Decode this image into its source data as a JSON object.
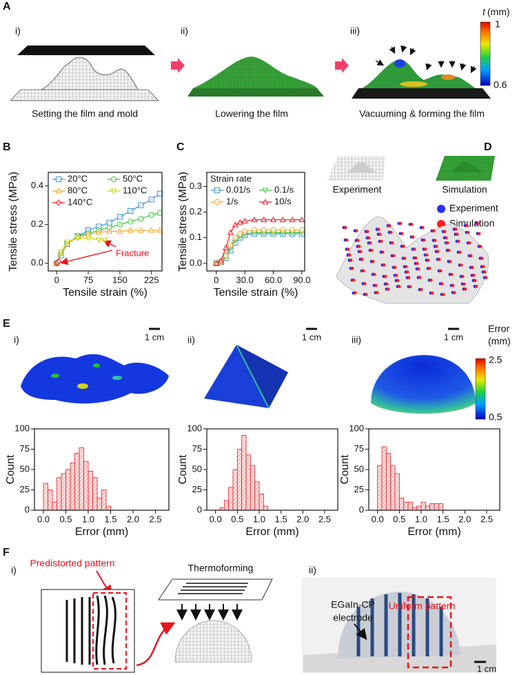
{
  "panel_labels": [
    "A",
    "B",
    "C",
    "D",
    "E",
    "F"
  ],
  "panel_a": {
    "sub_labels": [
      "i)",
      "ii)",
      "iii)"
    ],
    "captions": [
      "Setting the film and mold",
      "Lowering the film",
      "Vacuuming & forming the film"
    ],
    "colorbar": {
      "variable": "t",
      "unit": "(mm)",
      "max": 1,
      "min": 0.6
    }
  },
  "panel_d": {
    "image_labels": [
      "Experiment",
      "Simulation"
    ],
    "legend": [
      {
        "name": "Experiment",
        "color": "#2b2bff"
      },
      {
        "name": "Simulation",
        "color": "#ff1a1a"
      }
    ]
  },
  "panel_e": {
    "sub_labels": [
      "i)",
      "ii)",
      "iii)"
    ],
    "scale_bars": [
      "1 cm",
      "1 cm",
      "1 cm"
    ],
    "colorbar": {
      "title": "Error",
      "unit": "(mm)",
      "max": 2.5,
      "min": 0.5
    }
  },
  "panel_f": {
    "sub_labels": [
      "i)",
      "ii)"
    ],
    "predistorted": "Predistorted pattern",
    "thermoforming": "Thermoforming",
    "electrode": [
      "EGaIn-CP",
      "electrode"
    ],
    "uniform": "Uniform pattern",
    "scale_bar": "1 cm"
  },
  "chart_data": [
    {
      "type": "line",
      "x_label": "Tensile strain (%)",
      "y_label": "Tensile stress (MPa)",
      "xlim": [
        -20,
        250
      ],
      "ylim": [
        -0.04,
        0.47
      ],
      "xticks": [
        0,
        75,
        150,
        225
      ],
      "yticks": [
        {
          "value": 0,
          "label": "0.0"
        },
        0.2,
        0.4
      ],
      "annotation": "Fracture",
      "legend_columns": 2,
      "series": [
        {
          "name": "20°C",
          "color": "#3d8fd6",
          "marker": "square",
          "x": [
            0,
            10,
            25,
            50,
            75,
            100,
            125,
            150,
            175,
            200,
            225,
            245
          ],
          "values": [
            0,
            0.04,
            0.1,
            0.14,
            0.17,
            0.19,
            0.21,
            0.24,
            0.27,
            0.3,
            0.33,
            0.36
          ]
        },
        {
          "name": "50°C",
          "color": "#3cc43c",
          "marker": "circle",
          "x": [
            0,
            10,
            25,
            50,
            75,
            100,
            125,
            150,
            175,
            200,
            225,
            245
          ],
          "values": [
            0,
            0.05,
            0.1,
            0.14,
            0.155,
            0.17,
            0.185,
            0.2,
            0.215,
            0.23,
            0.25,
            0.26
          ]
        },
        {
          "name": "80°C",
          "color": "#f5a623",
          "marker": "triangle",
          "x": [
            0,
            10,
            25,
            50,
            75,
            100,
            125,
            150,
            175,
            200,
            225,
            245
          ],
          "values": [
            0,
            0.05,
            0.1,
            0.135,
            0.15,
            0.16,
            0.165,
            0.165,
            0.17,
            0.17,
            0.17,
            0.17
          ]
        },
        {
          "name": "110°C",
          "color": "#c8d400",
          "marker": "triangle-down",
          "x": [
            0,
            10,
            25,
            50,
            75,
            100,
            115
          ],
          "values": [
            0,
            0.06,
            0.11,
            0.13,
            0.13,
            0.12,
            0.12
          ]
        },
        {
          "name": "140°C",
          "color": "#e8141c",
          "marker": "diamond",
          "x": [
            0,
            2,
            5
          ],
          "values": [
            0,
            0.005,
            0.01
          ]
        }
      ]
    },
    {
      "type": "line",
      "x_label": "Tensile strain (%)",
      "y_label": "Tensile stress (MPa)",
      "xlim": [
        -10,
        93
      ],
      "ylim": [
        -0.03,
        0.355
      ],
      "xticks": [
        0,
        {
          "value": 30,
          "label": "30.0"
        },
        {
          "value": 60,
          "label": "60.0"
        },
        {
          "value": 90,
          "label": "90.0"
        }
      ],
      "yticks": [
        {
          "value": 0,
          "label": "0.0"
        },
        0.1,
        0.2,
        0.3
      ],
      "legend_title": "Strain rate",
      "legend_columns": 2,
      "series": [
        {
          "name": "0.01/s",
          "color": "#3d8fd6",
          "marker": "square",
          "x": [
            0,
            5,
            10,
            15,
            20,
            25,
            30,
            40,
            50,
            60,
            70,
            80,
            90
          ],
          "values": [
            0,
            0.004,
            0.02,
            0.05,
            0.08,
            0.1,
            0.11,
            0.115,
            0.115,
            0.115,
            0.115,
            0.115,
            0.115
          ]
        },
        {
          "name": "0.1/s",
          "color": "#3cc43c",
          "marker": "triangle-down",
          "x": [
            0,
            5,
            10,
            15,
            20,
            25,
            30,
            40,
            50,
            60,
            70,
            80,
            90
          ],
          "values": [
            0,
            0.004,
            0.025,
            0.06,
            0.09,
            0.105,
            0.115,
            0.12,
            0.12,
            0.12,
            0.12,
            0.12,
            0.12
          ]
        },
        {
          "name": "1/s",
          "color": "#f5a623",
          "marker": "circle",
          "x": [
            0,
            5,
            10,
            15,
            20,
            25,
            30,
            40,
            50,
            60,
            70,
            80,
            90
          ],
          "values": [
            0,
            0.005,
            0.03,
            0.07,
            0.1,
            0.115,
            0.125,
            0.13,
            0.13,
            0.13,
            0.13,
            0.13,
            0.13
          ]
        },
        {
          "name": "10/s",
          "color": "#e8141c",
          "marker": "triangle",
          "x": [
            0,
            5,
            10,
            15,
            20,
            25,
            30,
            40,
            50,
            60,
            70,
            80,
            90
          ],
          "values": [
            0,
            0.01,
            0.06,
            0.12,
            0.15,
            0.16,
            0.165,
            0.17,
            0.17,
            0.17,
            0.17,
            0.17,
            0.17
          ]
        }
      ]
    },
    {
      "type": "histogram",
      "x_label": "Error (mm)",
      "y_label": "Count",
      "color": "#e8141c",
      "xlim": [
        -0.2,
        2.8
      ],
      "ylim": [
        0,
        100
      ],
      "xticks": [
        {
          "value": 0,
          "label": "0.0"
        },
        0.5,
        {
          "value": 1,
          "label": "1.0"
        },
        1.5,
        {
          "value": 2,
          "label": "2.0"
        },
        2.5
      ],
      "yticks": [
        0,
        25,
        50,
        75,
        100
      ],
      "bins": [
        0,
        0.1,
        0.2,
        0.3,
        0.4,
        0.5,
        0.6,
        0.7,
        0.8,
        0.9,
        1,
        1.1,
        1.2,
        1.3,
        1.4,
        1.5
      ],
      "counts": [
        33,
        25,
        10,
        40,
        45,
        50,
        58,
        70,
        77,
        60,
        48,
        40,
        15,
        25,
        5
      ]
    },
    {
      "type": "histogram",
      "x_label": "Error (mm)",
      "y_label": "Count",
      "color": "#e8141c",
      "xlim": [
        -0.2,
        2.8
      ],
      "ylim": [
        0,
        100
      ],
      "xticks": [
        {
          "value": 0,
          "label": "0.0"
        },
        0.5,
        {
          "value": 1,
          "label": "1.0"
        },
        1.5,
        {
          "value": 2,
          "label": "2.0"
        },
        2.5
      ],
      "yticks": [
        0,
        25,
        50,
        75,
        100
      ],
      "bins": [
        0.1,
        0.2,
        0.3,
        0.4,
        0.5,
        0.6,
        0.7,
        0.8,
        0.9,
        1,
        1.1,
        1.2
      ],
      "counts": [
        3,
        12,
        28,
        50,
        75,
        92,
        68,
        55,
        35,
        20,
        5
      ]
    },
    {
      "type": "histogram",
      "x_label": "Error (mm)",
      "y_label": "Count",
      "color": "#e8141c",
      "xlim": [
        -0.2,
        2.8
      ],
      "ylim": [
        0,
        100
      ],
      "xticks": [
        {
          "value": 0,
          "label": "0.0"
        },
        0.5,
        {
          "value": 1,
          "label": "1.0"
        },
        1.5,
        {
          "value": 2,
          "label": "2.0"
        },
        2.5
      ],
      "yticks": [
        0,
        25,
        50,
        75,
        100
      ],
      "bins": [
        0,
        0.1,
        0.2,
        0.3,
        0.4,
        0.5,
        0.6,
        0.7,
        0.8,
        0.9,
        1,
        1.1,
        1.2,
        1.3,
        1.4,
        1.5
      ],
      "counts": [
        55,
        78,
        70,
        55,
        45,
        15,
        10,
        10,
        3,
        5,
        10,
        5,
        8,
        8,
        8
      ]
    }
  ]
}
